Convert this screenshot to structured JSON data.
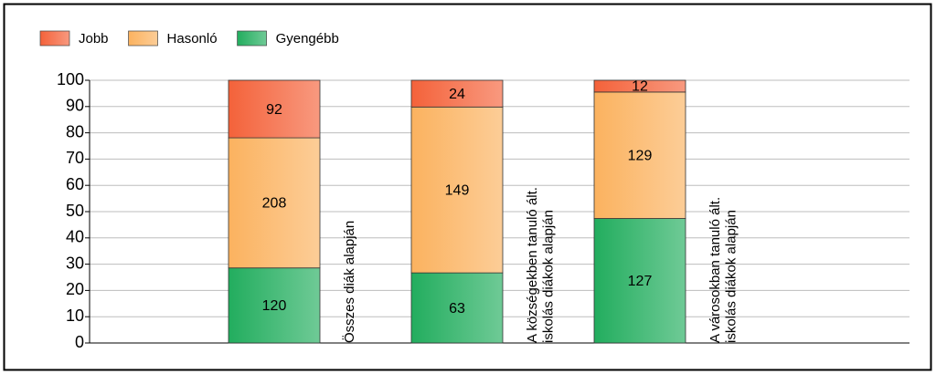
{
  "chart_data": {
    "type": "bar",
    "stacking": "percent",
    "categories": [
      "Összes diák alapján",
      "A községekben tanuló ált.\niskolás diákok alapján",
      "A városokban tanuló ált.\niskolás diákok alapján"
    ],
    "series": [
      {
        "name": "Gyengébb",
        "color": "#22ad5e",
        "values": [
          120,
          63,
          127
        ]
      },
      {
        "name": "Hasonló",
        "color": "#fbb25f",
        "values": [
          208,
          149,
          129
        ]
      },
      {
        "name": "Jobb",
        "color": "#f4623a",
        "values": [
          92,
          24,
          12
        ]
      }
    ],
    "legend_order": [
      2,
      1,
      0
    ],
    "ylim": [
      0,
      100
    ],
    "yticks": [
      0,
      10,
      20,
      30,
      40,
      50,
      60,
      70,
      80,
      90,
      100
    ],
    "grid": true
  }
}
